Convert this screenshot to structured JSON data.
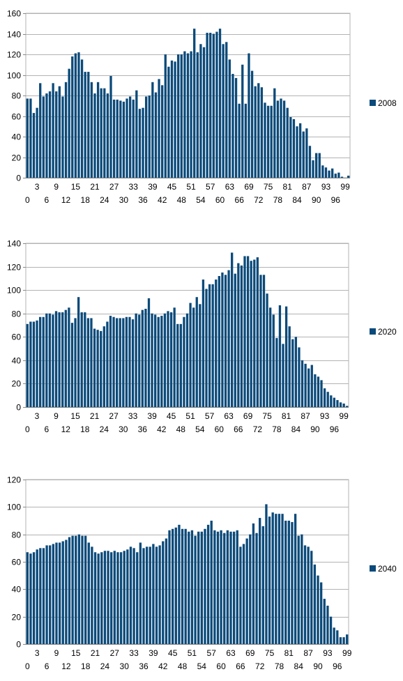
{
  "chart_data": [
    {
      "type": "bar",
      "series": [
        {
          "name": "2008",
          "values": [
            77,
            77,
            63,
            68,
            92,
            79,
            82,
            84,
            92,
            84,
            89,
            79,
            93,
            106,
            118,
            121,
            122,
            115,
            103,
            103,
            93,
            82,
            93,
            87,
            87,
            82,
            99,
            76,
            76,
            75,
            74,
            77,
            79,
            76,
            85,
            67,
            68,
            79,
            80,
            93,
            83,
            96,
            90,
            120,
            108,
            114,
            113,
            120,
            120,
            123,
            121,
            123,
            145,
            122,
            130,
            127,
            141,
            141,
            140,
            142,
            145,
            130,
            132,
            115,
            101,
            97,
            72,
            110,
            72,
            121,
            104,
            89,
            92,
            88,
            73,
            70,
            70,
            87,
            75,
            77,
            75,
            68,
            59,
            57,
            50,
            53,
            45,
            48,
            31,
            17,
            24,
            24,
            12,
            10,
            7,
            9,
            4,
            5,
            1,
            0,
            2
          ]
        }
      ],
      "x": [
        0,
        1,
        2,
        3,
        4,
        5,
        6,
        7,
        8,
        9,
        10,
        11,
        12,
        13,
        14,
        15,
        16,
        17,
        18,
        19,
        20,
        21,
        22,
        23,
        24,
        25,
        26,
        27,
        28,
        29,
        30,
        31,
        32,
        33,
        34,
        35,
        36,
        37,
        38,
        39,
        40,
        41,
        42,
        43,
        44,
        45,
        46,
        47,
        48,
        49,
        50,
        51,
        52,
        53,
        54,
        55,
        56,
        57,
        58,
        59,
        60,
        61,
        62,
        63,
        64,
        65,
        66,
        67,
        68,
        69,
        70,
        71,
        72,
        73,
        74,
        75,
        76,
        77,
        78,
        79,
        80,
        81,
        82,
        83,
        84,
        85,
        86,
        87,
        88,
        89,
        90,
        91,
        92,
        93,
        94,
        95,
        96,
        97,
        98,
        99,
        100
      ],
      "xticks": [
        "0",
        "3",
        "6",
        "9",
        "12",
        "15",
        "18",
        "21",
        "24",
        "27",
        "30",
        "33",
        "36",
        "39",
        "42",
        "45",
        "48",
        "51",
        "54",
        "57",
        "60",
        "63",
        "66",
        "69",
        "72",
        "75",
        "78",
        "81",
        "84",
        "87",
        "90",
        "93",
        "96",
        "99"
      ],
      "yticks": [
        "0",
        "20",
        "40",
        "60",
        "80",
        "100",
        "120",
        "140",
        "160"
      ],
      "ylim": [
        0,
        160
      ],
      "legend": "right"
    },
    {
      "type": "bar",
      "series": [
        {
          "name": "2020",
          "values": [
            71,
            73,
            73,
            74,
            77,
            77,
            80,
            80,
            79,
            82,
            81,
            81,
            83,
            85,
            72,
            76,
            94,
            81,
            81,
            76,
            76,
            67,
            66,
            65,
            69,
            73,
            78,
            77,
            76,
            76,
            76,
            77,
            77,
            75,
            80,
            79,
            83,
            84,
            93,
            80,
            79,
            77,
            78,
            80,
            82,
            81,
            85,
            71,
            71,
            77,
            80,
            89,
            85,
            94,
            88,
            109,
            101,
            105,
            105,
            109,
            112,
            115,
            113,
            117,
            132,
            114,
            123,
            121,
            129,
            129,
            125,
            126,
            128,
            113,
            113,
            97,
            85,
            79,
            59,
            87,
            54,
            86,
            69,
            58,
            60,
            51,
            40,
            37,
            33,
            36,
            28,
            26,
            23,
            16,
            13,
            10,
            8,
            6,
            4,
            3,
            1
          ]
        }
      ],
      "x": [
        0,
        1,
        2,
        3,
        4,
        5,
        6,
        7,
        8,
        9,
        10,
        11,
        12,
        13,
        14,
        15,
        16,
        17,
        18,
        19,
        20,
        21,
        22,
        23,
        24,
        25,
        26,
        27,
        28,
        29,
        30,
        31,
        32,
        33,
        34,
        35,
        36,
        37,
        38,
        39,
        40,
        41,
        42,
        43,
        44,
        45,
        46,
        47,
        48,
        49,
        50,
        51,
        52,
        53,
        54,
        55,
        56,
        57,
        58,
        59,
        60,
        61,
        62,
        63,
        64,
        65,
        66,
        67,
        68,
        69,
        70,
        71,
        72,
        73,
        74,
        75,
        76,
        77,
        78,
        79,
        80,
        81,
        82,
        83,
        84,
        85,
        86,
        87,
        88,
        89,
        90,
        91,
        92,
        93,
        94,
        95,
        96,
        97,
        98,
        99,
        100
      ],
      "xticks": [
        "0",
        "3",
        "6",
        "9",
        "12",
        "15",
        "18",
        "21",
        "24",
        "27",
        "30",
        "33",
        "36",
        "39",
        "42",
        "45",
        "48",
        "51",
        "54",
        "57",
        "60",
        "63",
        "66",
        "69",
        "72",
        "75",
        "78",
        "81",
        "84",
        "87",
        "90",
        "93",
        "96",
        "99"
      ],
      "yticks": [
        "0",
        "20",
        "40",
        "60",
        "80",
        "100",
        "120",
        "140"
      ],
      "ylim": [
        0,
        140
      ],
      "legend": "right"
    },
    {
      "type": "bar",
      "series": [
        {
          "name": "2040",
          "values": [
            67,
            66,
            67,
            69,
            70,
            70,
            72,
            72,
            73,
            74,
            74,
            75,
            76,
            78,
            79,
            79,
            80,
            79,
            79,
            74,
            71,
            67,
            66,
            67,
            68,
            68,
            67,
            68,
            67,
            67,
            68,
            69,
            71,
            70,
            67,
            74,
            70,
            71,
            71,
            73,
            71,
            72,
            75,
            77,
            83,
            84,
            85,
            87,
            84,
            84,
            82,
            83,
            79,
            82,
            82,
            84,
            87,
            90,
            83,
            82,
            83,
            81,
            83,
            82,
            82,
            83,
            71,
            73,
            77,
            80,
            88,
            81,
            92,
            86,
            102,
            93,
            96,
            95,
            95,
            95,
            90,
            90,
            89,
            95,
            79,
            80,
            72,
            71,
            68,
            58,
            50,
            45,
            33,
            28,
            20,
            12,
            10,
            5,
            5,
            7
          ]
        }
      ],
      "x": [
        0,
        1,
        2,
        3,
        4,
        5,
        6,
        7,
        8,
        9,
        10,
        11,
        12,
        13,
        14,
        15,
        16,
        17,
        18,
        19,
        20,
        21,
        22,
        23,
        24,
        25,
        26,
        27,
        28,
        29,
        30,
        31,
        32,
        33,
        34,
        35,
        36,
        37,
        38,
        39,
        40,
        41,
        42,
        43,
        44,
        45,
        46,
        47,
        48,
        49,
        50,
        51,
        52,
        53,
        54,
        55,
        56,
        57,
        58,
        59,
        60,
        61,
        62,
        63,
        64,
        65,
        66,
        67,
        68,
        69,
        70,
        71,
        72,
        73,
        74,
        75,
        76,
        77,
        78,
        79,
        80,
        81,
        82,
        83,
        84,
        85,
        86,
        87,
        88,
        89,
        90,
        91,
        92,
        93,
        94,
        95,
        96,
        97,
        98,
        99
      ],
      "xticks": [
        "0",
        "3",
        "6",
        "9",
        "12",
        "15",
        "18",
        "21",
        "24",
        "27",
        "30",
        "33",
        "36",
        "39",
        "42",
        "45",
        "48",
        "51",
        "54",
        "57",
        "60",
        "63",
        "66",
        "69",
        "72",
        "75",
        "78",
        "81",
        "84",
        "87",
        "90",
        "93",
        "96",
        "99"
      ],
      "yticks": [
        "0",
        "20",
        "40",
        "60",
        "80",
        "100",
        "120"
      ],
      "ylim": [
        0,
        120
      ],
      "legend": "right"
    }
  ],
  "colors": {
    "bar": "#0b4a7a",
    "grid": "#b3b3b3",
    "axis": "#888888"
  }
}
